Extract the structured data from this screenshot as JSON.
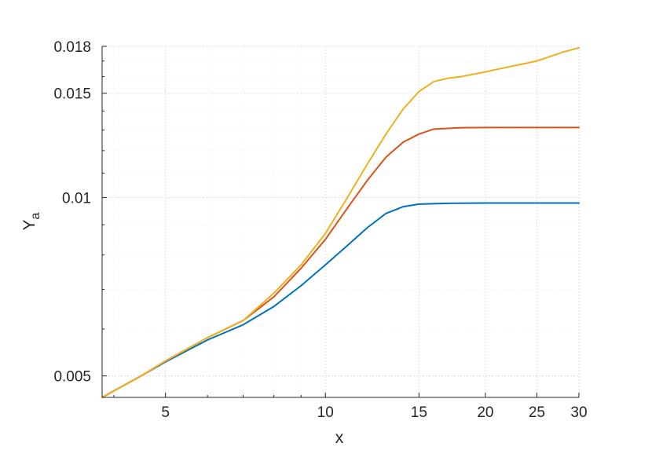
{
  "chart_data": {
    "type": "line",
    "title": "",
    "xlabel": "x",
    "ylabel_main": "Y",
    "ylabel_sub": "a",
    "x_scale": "log",
    "y_scale": "log",
    "xlim": [
      3.8,
      30
    ],
    "ylim": [
      0.0046,
      0.018
    ],
    "x_ticks": [
      5,
      10,
      15,
      20,
      25,
      30
    ],
    "x_tick_labels": [
      "5",
      "10",
      "15",
      "20",
      "25",
      "30"
    ],
    "y_ticks": [
      0.005,
      0.01,
      0.015,
      0.018
    ],
    "y_tick_labels": [
      "0.005",
      "0.01",
      "0.015",
      "0.018"
    ],
    "grid": true,
    "legend": "none",
    "series": [
      {
        "color": "#0072BD",
        "points": [
          [
            3.8,
            0.0046
          ],
          [
            4.5,
            0.005
          ],
          [
            5,
            0.00528
          ],
          [
            6,
            0.00575
          ],
          [
            7,
            0.0061
          ],
          [
            8,
            0.00655
          ],
          [
            9,
            0.0071
          ],
          [
            10,
            0.0077
          ],
          [
            11,
            0.0083
          ],
          [
            12,
            0.0089
          ],
          [
            13,
            0.0094
          ],
          [
            14,
            0.00965
          ],
          [
            15,
            0.00975
          ],
          [
            17,
            0.00978
          ],
          [
            20,
            0.00979
          ],
          [
            25,
            0.00979
          ],
          [
            30,
            0.00979
          ]
        ]
      },
      {
        "color": "#D95319",
        "points": [
          [
            3.8,
            0.0046
          ],
          [
            4.5,
            0.005
          ],
          [
            5,
            0.0053
          ],
          [
            6,
            0.0058
          ],
          [
            7,
            0.0062
          ],
          [
            8,
            0.0068
          ],
          [
            9,
            0.0076
          ],
          [
            10,
            0.0085
          ],
          [
            11,
            0.0096
          ],
          [
            12,
            0.0107
          ],
          [
            13,
            0.0117
          ],
          [
            14,
            0.0124
          ],
          [
            15,
            0.0128
          ],
          [
            16,
            0.01305
          ],
          [
            18,
            0.01312
          ],
          [
            20,
            0.01313
          ],
          [
            25,
            0.01313
          ],
          [
            30,
            0.01313
          ]
        ]
      },
      {
        "color": "#EDB120",
        "points": [
          [
            3.8,
            0.0046
          ],
          [
            4.5,
            0.005
          ],
          [
            5,
            0.0053
          ],
          [
            6,
            0.0058
          ],
          [
            7,
            0.0062
          ],
          [
            8,
            0.0069
          ],
          [
            9,
            0.0077
          ],
          [
            10,
            0.0087
          ],
          [
            11,
            0.01
          ],
          [
            12,
            0.0114
          ],
          [
            13,
            0.0128
          ],
          [
            14,
            0.0141
          ],
          [
            15,
            0.0151
          ],
          [
            16,
            0.0157
          ],
          [
            17,
            0.0159
          ],
          [
            18,
            0.016
          ],
          [
            20,
            0.0163
          ],
          [
            22,
            0.0166
          ],
          [
            25,
            0.017
          ],
          [
            28,
            0.0176
          ],
          [
            30,
            0.0179
          ]
        ]
      }
    ]
  }
}
